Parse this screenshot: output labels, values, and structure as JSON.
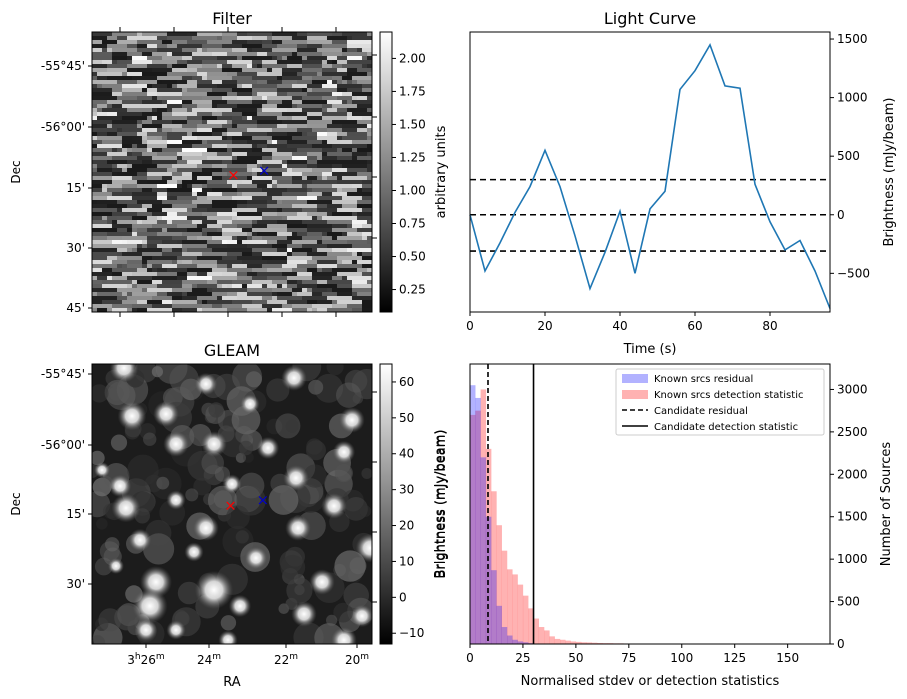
{
  "chart_data": [
    {
      "type": "heatmap",
      "panel": "filter",
      "title": "Filter",
      "xlabel": "",
      "ylabel": "Dec",
      "dec_tick_labels": [
        "-55°45'",
        "-56°00'",
        "15'",
        "30'",
        "45'"
      ],
      "colorbar": {
        "label": "arbitrary units",
        "range": [
          0.08,
          2.2
        ],
        "tick_values": [
          0.25,
          0.5,
          0.75,
          1.0,
          1.25,
          1.5,
          1.75,
          2.0
        ],
        "tick_labels": [
          "0.25",
          "0.50",
          "0.75",
          "1.00",
          "1.25",
          "1.50",
          "1.75",
          "2.00"
        ],
        "colormap": "gray"
      },
      "markers": [
        {
          "name": "red-cross",
          "symbol": "×",
          "color": "#ff0000",
          "ra_frac": 0.505,
          "dec_frac": 0.51
        },
        {
          "name": "blue-cross",
          "symbol": "×",
          "color": "#0000cc",
          "ra_frac": 0.615,
          "dec_frac": 0.495
        }
      ]
    },
    {
      "type": "line",
      "panel": "light_curve",
      "title": "Light Curve",
      "xlabel": "Time (s)",
      "ylabel": "Brightness (mJy/beam)",
      "xlim": [
        0,
        96
      ],
      "ylim": [
        -830,
        1560
      ],
      "x_ticks": [
        0,
        20,
        40,
        60,
        80
      ],
      "y_ticks": [
        -500,
        0,
        500,
        1000,
        1500
      ],
      "x": [
        0,
        4,
        8,
        12,
        16,
        20,
        24,
        28,
        32,
        36,
        40,
        44,
        48,
        52,
        56,
        60,
        64,
        68,
        72,
        76,
        80,
        84,
        88,
        92,
        96
      ],
      "series": [
        {
          "name": "light-curve",
          "color": "#1f77b4",
          "values": [
            0,
            -480,
            -240,
            20,
            240,
            550,
            240,
            -180,
            -630,
            -320,
            30,
            -500,
            50,
            200,
            1070,
            1230,
            1450,
            1100,
            1080,
            260,
            -60,
            -300,
            -220,
            -480,
            -800
          ]
        }
      ],
      "hlines": [
        {
          "y": 300,
          "style": "dashed",
          "color": "#000000"
        },
        {
          "y": 0,
          "style": "dashed",
          "color": "#000000"
        },
        {
          "y": -310,
          "style": "dashed",
          "color": "#000000"
        }
      ]
    },
    {
      "type": "heatmap",
      "panel": "gleam",
      "title": "GLEAM",
      "xlabel": "RA",
      "ylabel": "Dec",
      "ra_tick_labels": [
        "26",
        "24",
        "22",
        "20"
      ],
      "ra_tick_hour_prefix": "3",
      "ra_tick_hour_unit": "h",
      "ra_tick_min_unit": "m",
      "dec_tick_labels": [
        "-55°45'",
        "-56°00'",
        "15'",
        "30'"
      ],
      "colorbar": {
        "label": "Brightness (mJy/beam)",
        "range": [
          -13,
          65
        ],
        "tick_values": [
          -10,
          0,
          10,
          20,
          30,
          40,
          50,
          60
        ],
        "tick_labels": [
          "−10",
          "0",
          "10",
          "20",
          "30",
          "40",
          "50",
          "60"
        ],
        "colormap": "gray"
      },
      "markers": [
        {
          "name": "red-cross",
          "symbol": "×",
          "color": "#ff0000",
          "ra_frac": 0.495,
          "dec_frac": 0.505
        },
        {
          "name": "blue-cross",
          "symbol": "×",
          "color": "#0000cc",
          "ra_frac": 0.61,
          "dec_frac": 0.485
        }
      ]
    },
    {
      "type": "bar",
      "panel": "histogram",
      "title": "",
      "xlabel": "Normalised stdev or detection statistics",
      "ylabel": "Number of Sources",
      "xlim": [
        0,
        170
      ],
      "ylim": [
        0,
        3300
      ],
      "x_ticks": [
        0,
        25,
        50,
        75,
        100,
        125,
        150
      ],
      "y_ticks": [
        0,
        500,
        1000,
        1500,
        2000,
        2500,
        3000
      ],
      "bin_width": 2.5,
      "series": [
        {
          "name": "Known srcs residual",
          "color": "#0000ff",
          "alpha": 0.3,
          "values": [
            3050,
            2900,
            2200,
            1500,
            870,
            450,
            200,
            100,
            50,
            30,
            20,
            10,
            5,
            4,
            3,
            2
          ]
        },
        {
          "name": "Known srcs detection statistic",
          "color": "#ff0000",
          "alpha": 0.3,
          "values": [
            2700,
            2750,
            3000,
            2300,
            1800,
            1400,
            1100,
            880,
            820,
            700,
            570,
            420,
            300,
            200,
            160,
            90,
            60,
            50,
            40,
            30,
            25,
            20,
            18,
            15,
            12,
            10,
            10,
            8,
            8,
            6,
            6,
            5,
            5,
            4,
            4,
            3,
            3,
            3,
            2,
            2,
            2,
            2,
            2,
            2,
            1,
            1,
            1,
            1,
            1,
            1,
            1,
            1,
            1,
            1,
            0,
            0,
            0,
            1,
            0,
            0,
            0,
            0,
            0,
            1,
            0,
            0
          ]
        }
      ],
      "vlines": [
        {
          "name": "Candidate residual",
          "x": 8.5,
          "style": "dashed",
          "color": "#000000"
        },
        {
          "name": "Candidate detection statistic",
          "x": 30,
          "style": "solid",
          "color": "#000000"
        }
      ],
      "legend": {
        "placement": "top-right",
        "entries": [
          "Known srcs residual",
          "Known srcs detection statistic",
          "Candidate residual",
          "Candidate detection statistic"
        ]
      },
      "twin_axis_label": "Brightness (mJy/beam)"
    }
  ]
}
